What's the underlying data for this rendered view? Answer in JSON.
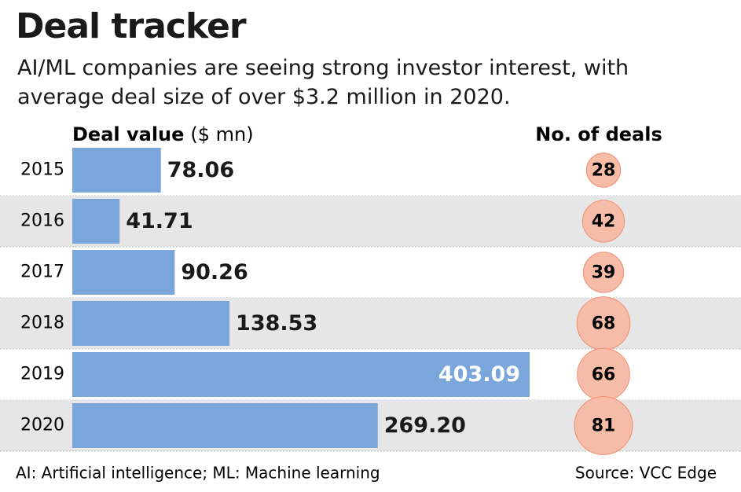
{
  "chart_data": {
    "type": "bar",
    "title": "Deal tracker",
    "subtitle": "AI/ML companies are seeing strong investor interest, with average deal size of over $3.2 million in 2020.",
    "value_axis_label": "Deal value",
    "value_axis_unit": "($ mn)",
    "categories": [
      "2015",
      "2016",
      "2017",
      "2018",
      "2019",
      "2020"
    ],
    "series": [
      {
        "name": "Deal value",
        "color": "#7ba6dc",
        "values": [
          78.06,
          41.71,
          90.26,
          138.53,
          403.09,
          269.2
        ],
        "value_labels": [
          "78.06",
          "41.71",
          "90.26",
          "138.53",
          "403.09",
          "269.20"
        ]
      },
      {
        "name": "No. of deals",
        "color": "#f6bca8",
        "values": [
          28,
          42,
          39,
          68,
          66,
          81
        ]
      }
    ],
    "footnote": "AI: Artificial intelligence; ML: Machine learning",
    "source": "Source: VCC Edge"
  }
}
